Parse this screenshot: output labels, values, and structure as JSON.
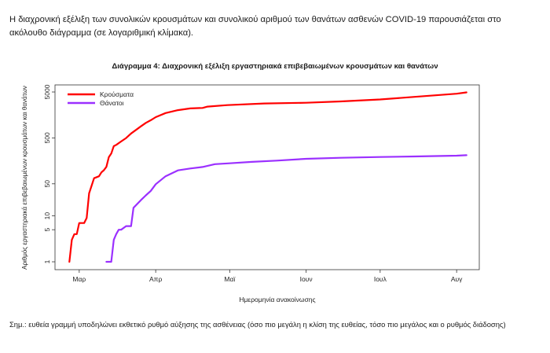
{
  "intro_text": "Η διαχρονική εξέλιξη των συνολικών κρουσμάτων και συνολικού αριθμού των θανάτων ασθενών COVID-19 παρουσιάζεται στο ακόλουθο διάγραμμα (σε λογαριθμική κλίμακα).",
  "note_text": "Σημ.: ευθεία γραμμή υποδηλώνει εκθετικό ρυθμό αύξησης της ασθένειας (όσο πιο μεγάλη η κλίση της ευθείας, τόσο πιο μεγάλος και ο ρυθμός διάδοσης)",
  "chart_data": {
    "type": "line",
    "title": "Διάγραμμα 4: Διαχρονική εξέλιξη εργαστηριακά επιβεβαιωμένων κρουσμάτων και θανάτων",
    "xlabel": "Ημερομηνία ανακοίνωσης",
    "ylabel": "Αριθμός εργαστηριακά επιβεβαιωμένων κρουσμάτων και θανάτων",
    "y_scale": "log",
    "ylim": [
      1,
      5000
    ],
    "xlim": [
      "2020-02-24",
      "2020-08-07"
    ],
    "yticks": [
      1,
      5,
      10,
      50,
      500,
      5000
    ],
    "ytick_labels": [
      "1",
      "5",
      "10",
      "50",
      "500",
      "5000"
    ],
    "xticks": [
      "2020-03-01",
      "2020-04-01",
      "2020-05-01",
      "2020-06-01",
      "2020-07-01",
      "2020-08-01"
    ],
    "xtick_labels": [
      "Μαρ",
      "Απρ",
      "Μαϊ",
      "Ιουν",
      "Ιουλ",
      "Αυγ"
    ],
    "legend_position": "top-left",
    "grid": false,
    "series": [
      {
        "name": "Κρούσματα",
        "color": "#ff0000",
        "points": [
          [
            "2020-02-26",
            1
          ],
          [
            "2020-02-27",
            3
          ],
          [
            "2020-02-28",
            4
          ],
          [
            "2020-02-29",
            4
          ],
          [
            "2020-03-01",
            7
          ],
          [
            "2020-03-03",
            7
          ],
          [
            "2020-03-04",
            9
          ],
          [
            "2020-03-05",
            31
          ],
          [
            "2020-03-06",
            45
          ],
          [
            "2020-03-07",
            66
          ],
          [
            "2020-03-09",
            73
          ],
          [
            "2020-03-10",
            89
          ],
          [
            "2020-03-11",
            99
          ],
          [
            "2020-03-12",
            117
          ],
          [
            "2020-03-13",
            190
          ],
          [
            "2020-03-14",
            228
          ],
          [
            "2020-03-15",
            331
          ],
          [
            "2020-03-16",
            352
          ],
          [
            "2020-03-18",
            418
          ],
          [
            "2020-03-20",
            495
          ],
          [
            "2020-03-22",
            624
          ],
          [
            "2020-03-24",
            743
          ],
          [
            "2020-03-26",
            892
          ],
          [
            "2020-03-28",
            1061
          ],
          [
            "2020-03-30",
            1212
          ],
          [
            "2020-04-01",
            1415
          ],
          [
            "2020-04-05",
            1735
          ],
          [
            "2020-04-10",
            2011
          ],
          [
            "2020-04-15",
            2192
          ],
          [
            "2020-04-20",
            2245
          ],
          [
            "2020-04-22",
            2401
          ],
          [
            "2020-04-30",
            2591
          ],
          [
            "2020-05-15",
            2810
          ],
          [
            "2020-06-01",
            2918
          ],
          [
            "2020-06-15",
            3121
          ],
          [
            "2020-07-01",
            3432
          ],
          [
            "2020-07-15",
            3910
          ],
          [
            "2020-08-01",
            4587
          ],
          [
            "2020-08-05",
            4900
          ]
        ]
      },
      {
        "name": "Θάνατοι",
        "color": "#9b30ff",
        "points": [
          [
            "2020-03-12",
            1
          ],
          [
            "2020-03-14",
            1
          ],
          [
            "2020-03-15",
            3
          ],
          [
            "2020-03-16",
            4
          ],
          [
            "2020-03-17",
            5
          ],
          [
            "2020-03-18",
            5
          ],
          [
            "2020-03-20",
            6
          ],
          [
            "2020-03-22",
            6
          ],
          [
            "2020-03-23",
            15
          ],
          [
            "2020-03-26",
            22
          ],
          [
            "2020-03-28",
            28
          ],
          [
            "2020-03-30",
            35
          ],
          [
            "2020-04-01",
            49
          ],
          [
            "2020-04-05",
            73
          ],
          [
            "2020-04-10",
            98
          ],
          [
            "2020-04-15",
            108
          ],
          [
            "2020-04-20",
            116
          ],
          [
            "2020-04-25",
            134
          ],
          [
            "2020-05-01",
            140
          ],
          [
            "2020-05-10",
            150
          ],
          [
            "2020-05-20",
            160
          ],
          [
            "2020-06-01",
            175
          ],
          [
            "2020-06-15",
            184
          ],
          [
            "2020-07-01",
            192
          ],
          [
            "2020-07-15",
            197
          ],
          [
            "2020-08-01",
            205
          ],
          [
            "2020-08-05",
            210
          ]
        ]
      }
    ]
  }
}
